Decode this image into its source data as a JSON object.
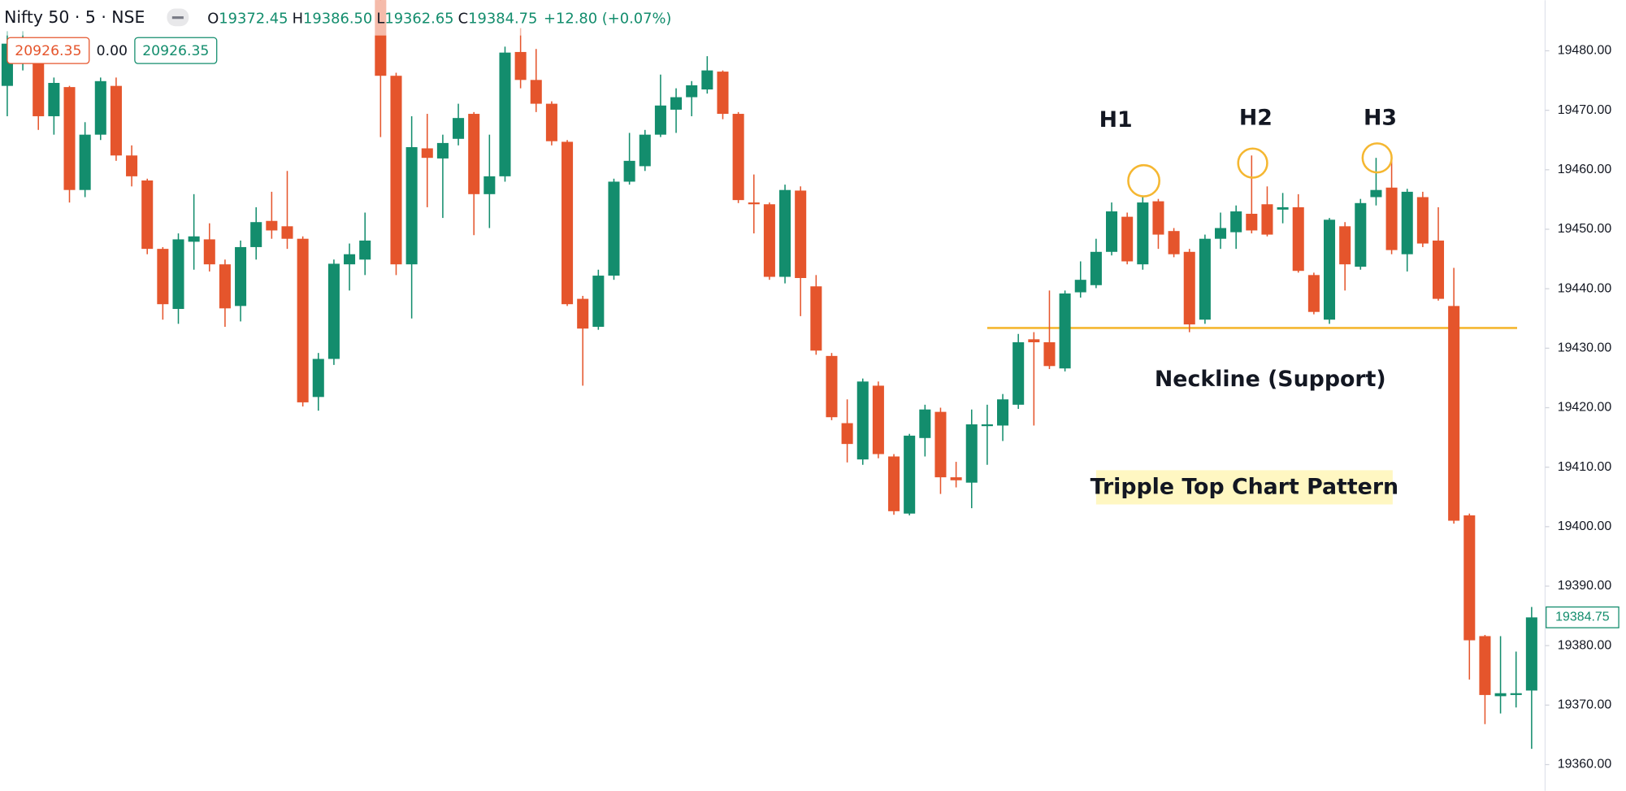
{
  "header": {
    "symbol": "Nifty 50 · 5 · NSE",
    "ohlc": [
      {
        "key": "O",
        "value": "19372.45"
      },
      {
        "key": "H",
        "value": "19386.50"
      },
      {
        "key": "L",
        "value": "19362.65"
      },
      {
        "key": "C",
        "value": "19384.75"
      }
    ],
    "change": "+12.80 (+0.07%)",
    "price_boxes": [
      "20926.35",
      "0.00",
      "20926.35"
    ]
  },
  "chart_data": {
    "type": "candlestick",
    "up_color": "#138d6d",
    "down_color": "#e5552c",
    "grid": false,
    "ylim": [
      19355.6,
      19488.5
    ],
    "yticks": [
      {
        "value": 19360,
        "label": "19360.00"
      },
      {
        "value": 19370,
        "label": "19370.00"
      },
      {
        "value": 19380,
        "label": "19380.00"
      },
      {
        "value": 19390,
        "label": "19390.00"
      },
      {
        "value": 19400,
        "label": "19400.00"
      },
      {
        "value": 19410,
        "label": "19410.00"
      },
      {
        "value": 19420,
        "label": "19420.00"
      },
      {
        "value": 19430,
        "label": "19430.00"
      },
      {
        "value": 19440,
        "label": "19440.00"
      },
      {
        "value": 19450,
        "label": "19450.00"
      },
      {
        "value": 19460,
        "label": "19460.00"
      },
      {
        "value": 19470,
        "label": "19470.00"
      },
      {
        "value": 19480,
        "label": "19480.00"
      }
    ],
    "last_price": {
      "value": 19384.75,
      "label": "19384.75"
    },
    "neckline": {
      "value": 19433.4,
      "label": "Neckline (Support)",
      "color": "#f5b731"
    },
    "peaks": [
      "H1",
      "H2",
      "H3"
    ],
    "pattern_label": "Tripple Top Chart Pattern",
    "open": [
      19474.1,
      19478.4,
      19479.0,
      19469.0,
      19473.9,
      19456.6,
      19465.9,
      19474.1,
      19462.4,
      19458.2,
      19446.7,
      19436.6,
      19447.9,
      19448.3,
      19444.1,
      19437.1,
      19447.0,
      19451.4,
      19450.5,
      19448.4,
      19421.8,
      19428.2,
      19444.1,
      19444.9,
      19489.0,
      19475.8,
      19444.1,
      19463.6,
      19461.9,
      19465.2,
      19469.4,
      19455.9,
      19458.9,
      19479.8,
      19475.1,
      19471.1,
      19464.7,
      19438.3,
      19433.6,
      19442.2,
      19458.0,
      19460.6,
      19465.9,
      19470.1,
      19472.2,
      19473.5,
      19476.5,
      19469.4,
      19454.5,
      19454.2,
      19442.0,
      19456.5,
      19440.4,
      19428.7,
      19417.4,
      19411.3,
      19423.7,
      19411.8,
      19402.2,
      19414.9,
      19419.3,
      19408.3,
      19407.4,
      19416.9,
      19417.0,
      19420.5,
      19431.5,
      19431.0,
      19426.6,
      19439.4,
      19440.6,
      19446.2,
      19452.1,
      19444.1,
      19454.7,
      19449.7,
      19446.2,
      19434.8,
      19448.4,
      19449.5,
      19452.6,
      19454.2,
      19453.3,
      19453.7,
      19442.3,
      19434.8,
      19450.5,
      19443.7,
      19455.4,
      19457.0,
      19445.8,
      19455.4,
      19448.1,
      19437.1,
      19401.9,
      19381.6,
      19371.5,
      19371.7,
      19372.45
    ],
    "high": [
      19483.3,
      19483.3,
      19480.7,
      19475.5,
      19474.1,
      19468.0,
      19475.5,
      19475.5,
      19464.1,
      19458.5,
      19447.0,
      19449.3,
      19455.9,
      19451.0,
      19444.9,
      19448.1,
      19453.7,
      19456.3,
      19459.8,
      19448.8,
      19429.2,
      19444.9,
      19447.6,
      19452.8,
      19492.0,
      19476.3,
      19469.0,
      19469.4,
      19465.9,
      19471.1,
      19469.7,
      19465.9,
      19480.7,
      19483.8,
      19480.3,
      19471.5,
      19465.0,
      19438.8,
      19443.2,
      19458.5,
      19466.2,
      19466.7,
      19476.0,
      19473.7,
      19474.9,
      19479.1,
      19476.7,
      19469.7,
      19459.2,
      19454.5,
      19457.5,
      19457.2,
      19442.3,
      19429.2,
      19421.4,
      19424.9,
      19424.4,
      19412.2,
      19415.6,
      19420.5,
      19420.0,
      19410.9,
      19419.7,
      19420.5,
      19422.3,
      19432.4,
      19432.7,
      19439.7,
      19439.7,
      19444.6,
      19448.4,
      19454.5,
      19452.8,
      19455.4,
      19455.1,
      19450.2,
      19446.7,
      19449.1,
      19452.8,
      19454.0,
      19462.4,
      19457.2,
      19456.1,
      19455.9,
      19442.7,
      19451.9,
      19451.2,
      19455.1,
      19462.0,
      19462.4,
      19456.8,
      19456.3,
      19453.7,
      19443.5,
      19402.2,
      19381.8,
      19381.6,
      19379.0,
      19386.5
    ],
    "low": [
      19469.0,
      19476.7,
      19466.7,
      19465.9,
      19454.5,
      19455.4,
      19465.0,
      19461.5,
      19457.2,
      19445.8,
      19434.8,
      19434.1,
      19443.2,
      19442.9,
      19433.6,
      19434.5,
      19444.9,
      19448.4,
      19446.7,
      19420.2,
      19419.5,
      19427.2,
      19439.7,
      19442.3,
      19465.5,
      19442.3,
      19435.0,
      19453.7,
      19451.9,
      19464.1,
      19449.0,
      19450.2,
      19458.0,
      19473.7,
      19469.7,
      19464.1,
      19437.1,
      19423.7,
      19433.1,
      19441.5,
      19457.5,
      19459.8,
      19465.5,
      19466.2,
      19469.0,
      19472.8,
      19468.5,
      19454.4,
      19449.3,
      19441.5,
      19440.9,
      19435.4,
      19428.9,
      19417.9,
      19410.8,
      19410.4,
      19411.5,
      19402.0,
      19401.9,
      19411.8,
      19405.5,
      19406.6,
      19403.1,
      19410.4,
      19414.4,
      19419.8,
      19417.0,
      19426.5,
      19426.1,
      19438.5,
      19440.1,
      19445.6,
      19444.1,
      19443.2,
      19446.7,
      19445.3,
      19432.7,
      19434.1,
      19446.7,
      19446.7,
      19449.3,
      19448.8,
      19451.0,
      19442.7,
      19435.7,
      19434.1,
      19439.7,
      19443.2,
      19454.0,
      19445.8,
      19442.9,
      19447.0,
      19438.0,
      19400.5,
      19374.3,
      19366.8,
      19368.6,
      19369.6,
      19362.65
    ],
    "close": [
      19481.2,
      19481.2,
      19469.0,
      19474.6,
      19456.6,
      19465.9,
      19474.9,
      19462.4,
      19458.9,
      19446.7,
      19437.4,
      19448.3,
      19448.8,
      19444.1,
      19436.7,
      19447.0,
      19451.2,
      19449.8,
      19448.4,
      19420.9,
      19428.2,
      19444.2,
      19445.8,
      19448.1,
      19475.8,
      19444.1,
      19463.8,
      19462.0,
      19464.5,
      19468.7,
      19455.9,
      19458.9,
      19479.7,
      19475.1,
      19471.1,
      19464.8,
      19437.4,
      19433.3,
      19442.2,
      19458.0,
      19461.5,
      19465.9,
      19470.8,
      19472.2,
      19474.2,
      19476.7,
      19469.4,
      19454.9,
      19454.2,
      19442.0,
      19456.6,
      19441.8,
      19429.6,
      19418.4,
      19413.9,
      19424.4,
      19412.2,
      19402.6,
      19415.3,
      19419.7,
      19408.3,
      19407.8,
      19417.2,
      19417.2,
      19421.4,
      19431.0,
      19431.0,
      19427.0,
      19439.2,
      19441.5,
      19446.2,
      19453.0,
      19444.6,
      19454.5,
      19449.1,
      19445.8,
      19434.0,
      19448.4,
      19450.2,
      19453.0,
      19449.8,
      19449.1,
      19453.7,
      19443.0,
      19436.1,
      19451.6,
      19444.1,
      19454.4,
      19456.6,
      19446.5,
      19456.3,
      19447.6,
      19438.3,
      19401.0,
      19380.9,
      19371.7,
      19372.0,
      19372.0,
      19384.75
    ]
  }
}
